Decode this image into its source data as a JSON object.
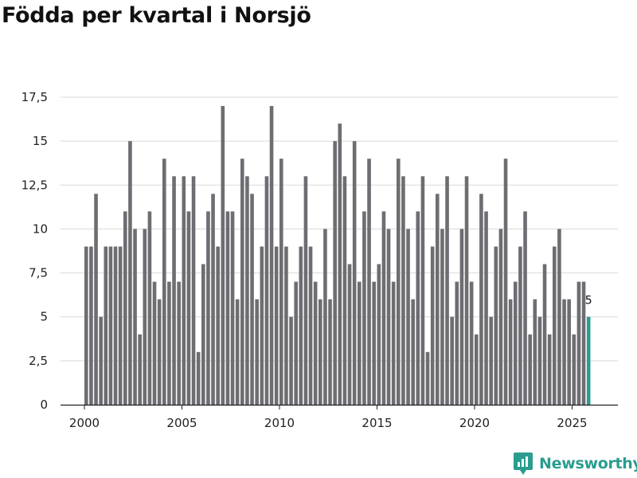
{
  "title": "Födda per kvartal i Norsjö",
  "brand": {
    "name": "Newsworthy",
    "icon": "newsworthy-logo-icon",
    "color": "#2a9d8f"
  },
  "chart_data": {
    "type": "bar",
    "title": "Födda per kvartal i Norsjö",
    "xlabel": "",
    "ylabel": "",
    "ylim": [
      0,
      17.5
    ],
    "xlim": [
      2000,
      2025.5
    ],
    "grid": true,
    "legend": "none",
    "y_ticks": [
      {
        "value": 0,
        "label": "0"
      },
      {
        "value": 2.5,
        "label": "2,5"
      },
      {
        "value": 5,
        "label": "5"
      },
      {
        "value": 7.5,
        "label": "7,5"
      },
      {
        "value": 10,
        "label": "10"
      },
      {
        "value": 12.5,
        "label": "12,5"
      },
      {
        "value": 15,
        "label": "15"
      },
      {
        "value": 17.5,
        "label": "17,5"
      }
    ],
    "x_ticks": [
      {
        "value": 2000,
        "label": "2000"
      },
      {
        "value": 2005,
        "label": "2005"
      },
      {
        "value": 2010,
        "label": "2010"
      },
      {
        "value": 2015,
        "label": "2015"
      },
      {
        "value": 2020,
        "label": "2020"
      },
      {
        "value": 2025,
        "label": "2025"
      }
    ],
    "bar_color": "#6d6d72",
    "highlight_color": "#2a9d8f",
    "highlight_label": "5",
    "start_year": 2000,
    "start_quarter": 1,
    "values": [
      9,
      9,
      12,
      5,
      9,
      9,
      9,
      9,
      11,
      15,
      10,
      4,
      10,
      11,
      7,
      6,
      14,
      7,
      13,
      7,
      13,
      11,
      13,
      3,
      8,
      11,
      12,
      9,
      17,
      11,
      11,
      6,
      14,
      13,
      12,
      6,
      9,
      13,
      17,
      9,
      14,
      9,
      5,
      7,
      9,
      13,
      9,
      7,
      6,
      10,
      6,
      15,
      16,
      13,
      8,
      15,
      7,
      11,
      14,
      7,
      8,
      11,
      10,
      7,
      14,
      13,
      10,
      6,
      11,
      13,
      3,
      9,
      12,
      10,
      13,
      5,
      7,
      10,
      13,
      7,
      4,
      12,
      11,
      5,
      9,
      10,
      14,
      6,
      7,
      9,
      11,
      4,
      6,
      5,
      8,
      4,
      9,
      10,
      6,
      6,
      4,
      7,
      7,
      5
    ]
  }
}
